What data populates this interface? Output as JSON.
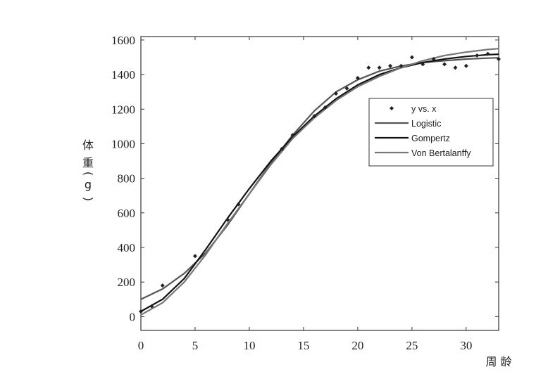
{
  "chart_data": {
    "type": "scatter",
    "xlabel": "周 龄",
    "ylabel_chars": [
      "体",
      "重",
      "(",
      "g",
      ")"
    ],
    "xlim": [
      0,
      33
    ],
    "ylim": [
      -80,
      1620
    ],
    "xticks": [
      0,
      5,
      10,
      15,
      20,
      25,
      30
    ],
    "yticks": [
      0,
      200,
      400,
      600,
      800,
      1000,
      1200,
      1400,
      1600
    ],
    "grid": false,
    "legend_position": "right",
    "series": [
      {
        "name": "y vs. x",
        "kind": "points",
        "color": "#222222",
        "x": [
          0,
          1,
          2,
          5,
          8,
          9,
          13,
          14,
          16,
          17,
          18,
          19,
          20,
          21,
          22,
          23,
          24,
          25,
          26,
          27,
          28,
          29,
          30,
          31,
          32,
          33
        ],
        "y": [
          30,
          60,
          180,
          350,
          560,
          650,
          970,
          1050,
          1160,
          1210,
          1290,
          1320,
          1380,
          1440,
          1440,
          1450,
          1450,
          1500,
          1460,
          1490,
          1460,
          1440,
          1450,
          1510,
          1520,
          1490
        ]
      },
      {
        "name": "Logistic",
        "kind": "line",
        "color": "#555555",
        "x": [
          0,
          2,
          4,
          6,
          8,
          10,
          12,
          14,
          16,
          18,
          20,
          22,
          24,
          26,
          28,
          30,
          32,
          33
        ],
        "y": [
          100,
          160,
          250,
          370,
          530,
          710,
          890,
          1050,
          1190,
          1300,
          1370,
          1420,
          1450,
          1470,
          1480,
          1490,
          1495,
          1497
        ]
      },
      {
        "name": "Gompertz",
        "kind": "line",
        "color": "#111111",
        "x": [
          0,
          2,
          4,
          6,
          8,
          10,
          12,
          14,
          16,
          18,
          20,
          22,
          24,
          26,
          28,
          30,
          32,
          33
        ],
        "y": [
          30,
          100,
          220,
          390,
          570,
          740,
          900,
          1040,
          1160,
          1260,
          1340,
          1400,
          1440,
          1470,
          1490,
          1505,
          1515,
          1518
        ]
      },
      {
        "name": "Von Bertalanffy",
        "kind": "line",
        "color": "#777777",
        "x": [
          0,
          2,
          4,
          6,
          8,
          10,
          12,
          14,
          16,
          18,
          20,
          22,
          24,
          26,
          28,
          30,
          32,
          33
        ],
        "y": [
          10,
          80,
          200,
          360,
          540,
          710,
          880,
          1030,
          1150,
          1250,
          1330,
          1390,
          1440,
          1480,
          1510,
          1530,
          1545,
          1550
        ]
      }
    ]
  }
}
